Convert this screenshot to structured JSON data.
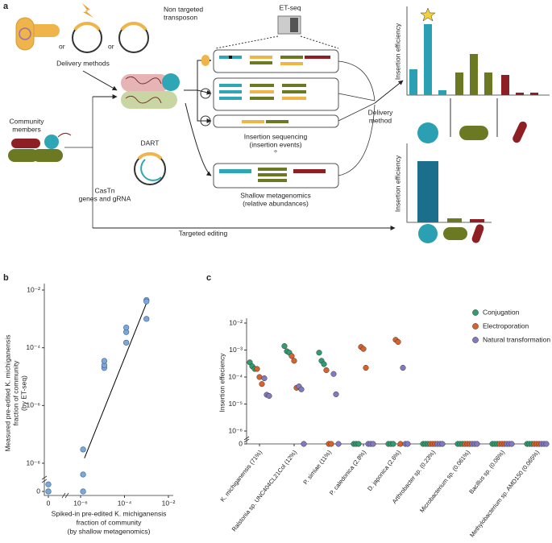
{
  "panel_a": {
    "label": "a",
    "transposon_label": [
      "Non targeted",
      "transposon"
    ],
    "or": [
      "or",
      "or"
    ],
    "delivery_methods": "Delivery methods",
    "et_seq": "ET-seq",
    "community_members": [
      "Community",
      "members"
    ],
    "dart": "DART",
    "castn": [
      "CasTn",
      "genes and gRNA"
    ],
    "insertion_sequencing": [
      "Insertion sequencing",
      "(insertion events)"
    ],
    "shallow_metagenomics": [
      "Shallow metagenomics",
      "(relative abundances)"
    ],
    "targeted_editing": "Targeted editing",
    "delivery_method": [
      "Delivery",
      "method"
    ],
    "insertion_efficiency": [
      "Insertion efficiency",
      "Insertion efficiency"
    ]
  },
  "chart_data": [
    {
      "type": "scatter",
      "panel_label": "b",
      "xlabel": [
        "Spiked-in pre-edited K. michiganensis",
        "fraction of community",
        "(by shallow metagenomics)"
      ],
      "ylabel": [
        "Measured pre-edited K. michiganensis",
        "fraction of community",
        "(by ET-seq)"
      ],
      "x": [
        0,
        0,
        0,
        1.3e-06,
        1.3e-06,
        1.3e-06,
        1.2e-05,
        1.2e-05,
        1.2e-05,
        0.00012,
        0.00012,
        0.00012,
        0.001,
        0.001,
        0.001
      ],
      "y": [
        2.5e-09,
        0,
        0,
        3e-08,
        6e-09,
        0,
        2e-05,
        2.5e-05,
        3.5e-05,
        0.00015,
        0.00035,
        0.0005,
        0.0045,
        0.004,
        0.001
      ],
      "color": "#7ba7d9",
      "xscale": "symlog",
      "xlinthresh": 1e-06,
      "yscale": "symlog",
      "ylinthresh": 1e-08,
      "xlim": [
        0,
        0.01
      ],
      "ylim": [
        0,
        0.01
      ],
      "xticks": [
        0,
        {
          "value": 1e-06,
          "label": "10⁻⁶"
        },
        {
          "value": 0.0001,
          "label": "10⁻⁴"
        },
        {
          "value": 0.01,
          "label": "10⁻²"
        }
      ],
      "yticks": [
        0,
        {
          "value": 1e-08,
          "label": "10⁻⁸"
        },
        {
          "value": 1e-06,
          "label": "10⁻⁶"
        },
        {
          "value": 0.0001,
          "label": "10⁻⁴"
        },
        {
          "value": 0.01,
          "label": "10⁻²"
        }
      ],
      "fit_line": {
        "x": [
          1.5e-06,
          0.001
        ],
        "y": [
          1.5e-08,
          0.0035
        ],
        "color": "#000000"
      }
    },
    {
      "type": "strip",
      "panel_label": "c",
      "ylabel": "Insertion effeciency",
      "categories": [
        "K. michiganensis (71%)",
        "Ralstonia sp. UNC404CL21Col (12%)",
        "P. simiae (11%)",
        "P. caledonica (2.8%)",
        "D. japonica (2.6%)",
        "Arthrobacter sp. (0.23%)",
        "Microbacterium sp. (0.061%)",
        "Bacillus sp. (0.06%)",
        "Methylobacterium sp. AMD150 (0.065%)"
      ],
      "yscale": "symlog",
      "ylinthresh": 1e-06,
      "ylim": [
        0,
        0.01
      ],
      "yticks": [
        0,
        {
          "value": 1e-06,
          "label": "10⁻⁶"
        },
        {
          "value": 1e-05,
          "label": "10⁻⁵"
        },
        {
          "value": 0.0001,
          "label": "10⁻⁴"
        },
        {
          "value": 0.001,
          "label": "10⁻³"
        },
        {
          "value": 0.01,
          "label": "10⁻²"
        }
      ],
      "legend": "top-right",
      "series": [
        {
          "name": "Conjugation",
          "color": "#2f9e6f",
          "values": [
            [
              0.00035,
              0.00025,
              0.0002
            ],
            [
              0.0014,
              0.0009,
              0.0008
            ],
            [
              0.0008,
              0.0004,
              0.0003
            ],
            [
              0,
              0,
              0
            ],
            [
              0,
              0,
              0
            ],
            [
              0,
              0,
              0
            ],
            [
              0,
              0,
              0
            ],
            [
              0,
              0,
              0
            ],
            [
              0,
              0,
              0
            ]
          ]
        },
        {
          "name": "Electroporation",
          "color": "#d9622b",
          "values": [
            [
              0.0002,
              0.0001,
              5.5e-05
            ],
            [
              0.0006,
              0.0004,
              4e-05
            ],
            [
              0.00018,
              0,
              0
            ],
            [
              0.0013,
              0.0011,
              0.00022
            ],
            [
              0.0024,
              0.002,
              0
            ],
            [
              0,
              0,
              0
            ],
            [
              0,
              0,
              0
            ],
            [
              0,
              0,
              0
            ],
            [
              0,
              0,
              0
            ]
          ]
        },
        {
          "name": "Natural transformation",
          "color": "#8179c2",
          "values": [
            [
              9e-05,
              2.2e-05,
              2e-05
            ],
            [
              4.5e-05,
              3.5e-05,
              0
            ],
            [
              0.00013,
              2.3e-05,
              0
            ],
            [
              0,
              0,
              0
            ],
            [
              0.00022,
              0,
              0
            ],
            [
              0,
              0,
              0
            ],
            [
              0,
              0,
              0
            ],
            [
              0,
              0,
              0
            ],
            [
              0,
              0,
              0
            ]
          ]
        }
      ]
    }
  ]
}
